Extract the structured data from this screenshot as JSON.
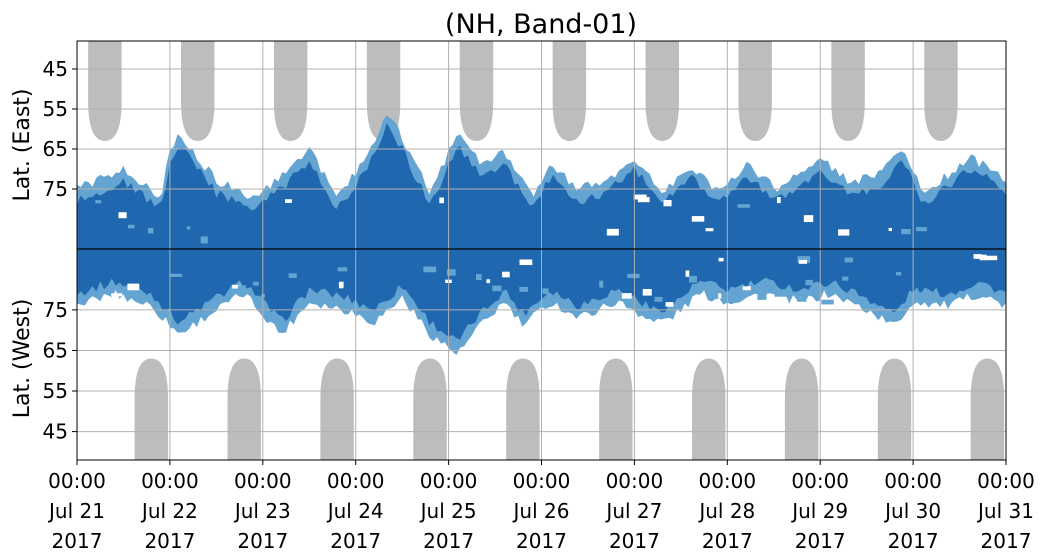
{
  "chart_data": {
    "type": "heatmap",
    "title": "(NH, Band-01)",
    "x_start": "2017-07-21 00:00",
    "x_end": "2017-07-31 00:00",
    "x_ticks": [
      {
        "time": "00:00",
        "date": "Jul 21",
        "year": "2017"
      },
      {
        "time": "00:00",
        "date": "Jul 22",
        "year": "2017"
      },
      {
        "time": "00:00",
        "date": "Jul 23",
        "year": "2017"
      },
      {
        "time": "00:00",
        "date": "Jul 24",
        "year": "2017"
      },
      {
        "time": "00:00",
        "date": "Jul 25",
        "year": "2017"
      },
      {
        "time": "00:00",
        "date": "Jul 26",
        "year": "2017"
      },
      {
        "time": "00:00",
        "date": "Jul 27",
        "year": "2017"
      },
      {
        "time": "00:00",
        "date": "Jul 28",
        "year": "2017"
      },
      {
        "time": "00:00",
        "date": "Jul 29",
        "year": "2017"
      },
      {
        "time": "00:00",
        "date": "Jul 30",
        "year": "2017"
      },
      {
        "time": "00:00",
        "date": "Jul 31",
        "year": "2017"
      }
    ],
    "upper_panel": {
      "ylabel": "Lat. (East)",
      "ytick_labels": [
        "45",
        "55",
        "65",
        "75"
      ],
      "lat_range": [
        38,
        90
      ]
    },
    "lower_panel": {
      "ylabel": "Lat. (West)",
      "ytick_labels": [
        "75",
        "65",
        "55",
        "45"
      ],
      "lat_range": [
        90,
        38
      ]
    },
    "grid": true,
    "colors": {
      "strong": "#1f68b0",
      "weak": "#63a4d2",
      "no_data": "#bdbdbd",
      "divider": "#000000",
      "grid": "#b0b0b0"
    },
    "no_data_columns": {
      "east_centers_day": [
        0.3,
        1.3,
        2.3,
        3.3,
        4.3,
        5.3,
        6.3,
        7.3,
        8.3,
        9.3
      ],
      "west_centers_day": [
        0.8,
        1.8,
        2.8,
        3.8,
        4.8,
        5.8,
        6.8,
        7.8,
        8.8,
        9.8
      ],
      "edge_lat": 63
    },
    "coverage_east": [
      {
        "day": 0.0,
        "to_lat": 78
      },
      {
        "day": 0.5,
        "to_lat": 73
      },
      {
        "day": 0.9,
        "to_lat": 80
      },
      {
        "day": 1.0,
        "to_lat": 69
      },
      {
        "day": 1.1,
        "to_lat": 64
      },
      {
        "day": 1.3,
        "to_lat": 70
      },
      {
        "day": 1.5,
        "to_lat": 76
      },
      {
        "day": 1.9,
        "to_lat": 80
      },
      {
        "day": 2.2,
        "to_lat": 75
      },
      {
        "day": 2.5,
        "to_lat": 68
      },
      {
        "day": 2.8,
        "to_lat": 80
      },
      {
        "day": 3.1,
        "to_lat": 71
      },
      {
        "day": 3.35,
        "to_lat": 58
      },
      {
        "day": 3.6,
        "to_lat": 70
      },
      {
        "day": 3.8,
        "to_lat": 79
      },
      {
        "day": 4.1,
        "to_lat": 64
      },
      {
        "day": 4.35,
        "to_lat": 72
      },
      {
        "day": 4.6,
        "to_lat": 69
      },
      {
        "day": 4.9,
        "to_lat": 80
      },
      {
        "day": 5.1,
        "to_lat": 72
      },
      {
        "day": 5.4,
        "to_lat": 78
      },
      {
        "day": 5.7,
        "to_lat": 76
      },
      {
        "day": 6.0,
        "to_lat": 70
      },
      {
        "day": 6.3,
        "to_lat": 79
      },
      {
        "day": 6.6,
        "to_lat": 72
      },
      {
        "day": 6.9,
        "to_lat": 79
      },
      {
        "day": 7.2,
        "to_lat": 72
      },
      {
        "day": 7.55,
        "to_lat": 78
      },
      {
        "day": 7.8,
        "to_lat": 74
      },
      {
        "day": 8.0,
        "to_lat": 70
      },
      {
        "day": 8.3,
        "to_lat": 76
      },
      {
        "day": 8.6,
        "to_lat": 75
      },
      {
        "day": 8.9,
        "to_lat": 68
      },
      {
        "day": 9.1,
        "to_lat": 79
      },
      {
        "day": 9.4,
        "to_lat": 74
      },
      {
        "day": 9.6,
        "to_lat": 70
      },
      {
        "day": 9.85,
        "to_lat": 73
      },
      {
        "day": 10.0,
        "to_lat": 76
      }
    ],
    "coverage_west": [
      {
        "day": 0.0,
        "to_lat": 79
      },
      {
        "day": 0.4,
        "to_lat": 82
      },
      {
        "day": 0.8,
        "to_lat": 79
      },
      {
        "day": 1.1,
        "to_lat": 72
      },
      {
        "day": 1.5,
        "to_lat": 78
      },
      {
        "day": 1.8,
        "to_lat": 82
      },
      {
        "day": 2.0,
        "to_lat": 77
      },
      {
        "day": 2.2,
        "to_lat": 72
      },
      {
        "day": 2.5,
        "to_lat": 80
      },
      {
        "day": 2.9,
        "to_lat": 78
      },
      {
        "day": 3.2,
        "to_lat": 75
      },
      {
        "day": 3.5,
        "to_lat": 81
      },
      {
        "day": 3.8,
        "to_lat": 72
      },
      {
        "day": 4.1,
        "to_lat": 67
      },
      {
        "day": 4.3,
        "to_lat": 73
      },
      {
        "day": 4.6,
        "to_lat": 80
      },
      {
        "day": 4.8,
        "to_lat": 74
      },
      {
        "day": 5.1,
        "to_lat": 80
      },
      {
        "day": 5.4,
        "to_lat": 76
      },
      {
        "day": 5.8,
        "to_lat": 80
      },
      {
        "day": 6.0,
        "to_lat": 78
      },
      {
        "day": 6.2,
        "to_lat": 75
      },
      {
        "day": 6.4,
        "to_lat": 76
      },
      {
        "day": 6.7,
        "to_lat": 82
      },
      {
        "day": 7.0,
        "to_lat": 80
      },
      {
        "day": 7.4,
        "to_lat": 82
      },
      {
        "day": 7.8,
        "to_lat": 80
      },
      {
        "day": 8.1,
        "to_lat": 82
      },
      {
        "day": 8.5,
        "to_lat": 78
      },
      {
        "day": 8.8,
        "to_lat": 74
      },
      {
        "day": 9.0,
        "to_lat": 80
      },
      {
        "day": 9.4,
        "to_lat": 79
      },
      {
        "day": 9.7,
        "to_lat": 82
      },
      {
        "day": 10.0,
        "to_lat": 79
      }
    ]
  }
}
